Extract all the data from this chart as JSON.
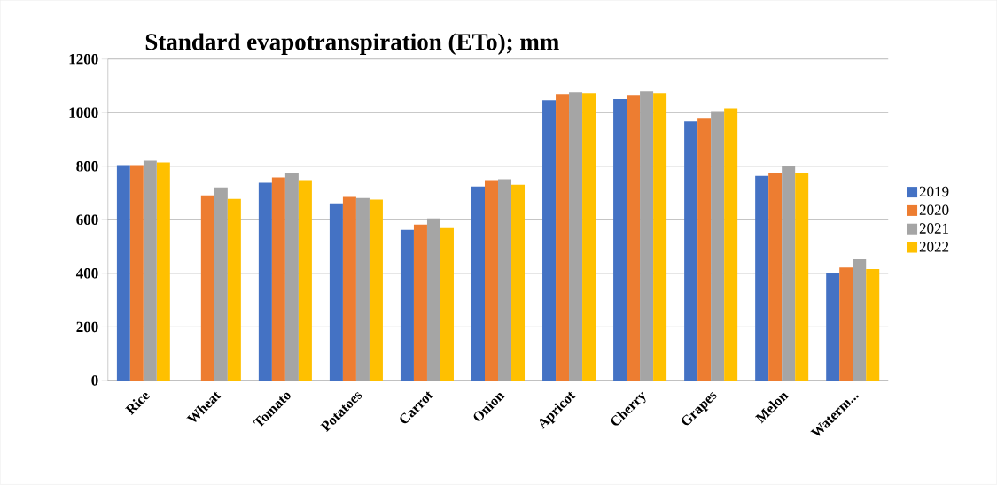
{
  "chart_data": {
    "type": "bar",
    "title": "Standard evapotranspiration (ETo); mm",
    "categories": [
      "Rice",
      "Wheat",
      "Tomato",
      "Potatoes",
      "Carrot",
      "Onion",
      "Apricot",
      "Cherry",
      "Grapes",
      "Melon",
      "Waterm..."
    ],
    "series": [
      {
        "name": "2019",
        "color": "#4472c4",
        "values": [
          804,
          null,
          738,
          661,
          562,
          724,
          1046,
          1050,
          967,
          764,
          403
        ]
      },
      {
        "name": "2020",
        "color": "#ed7d31",
        "values": [
          804,
          691,
          758,
          685,
          582,
          748,
          1069,
          1066,
          980,
          774,
          422
        ]
      },
      {
        "name": "2021",
        "color": "#a5a5a5",
        "values": [
          821,
          721,
          774,
          681,
          605,
          751,
          1076,
          1079,
          1006,
          801,
          452
        ]
      },
      {
        "name": "2022",
        "color": "#ffc000",
        "values": [
          814,
          678,
          748,
          675,
          569,
          731,
          1073,
          1073,
          1016,
          774,
          416
        ]
      }
    ],
    "ylim": [
      0,
      1200
    ],
    "yticks": [
      0,
      200,
      400,
      600,
      800,
      1000,
      1200
    ],
    "grid": "y",
    "legend": "right"
  }
}
